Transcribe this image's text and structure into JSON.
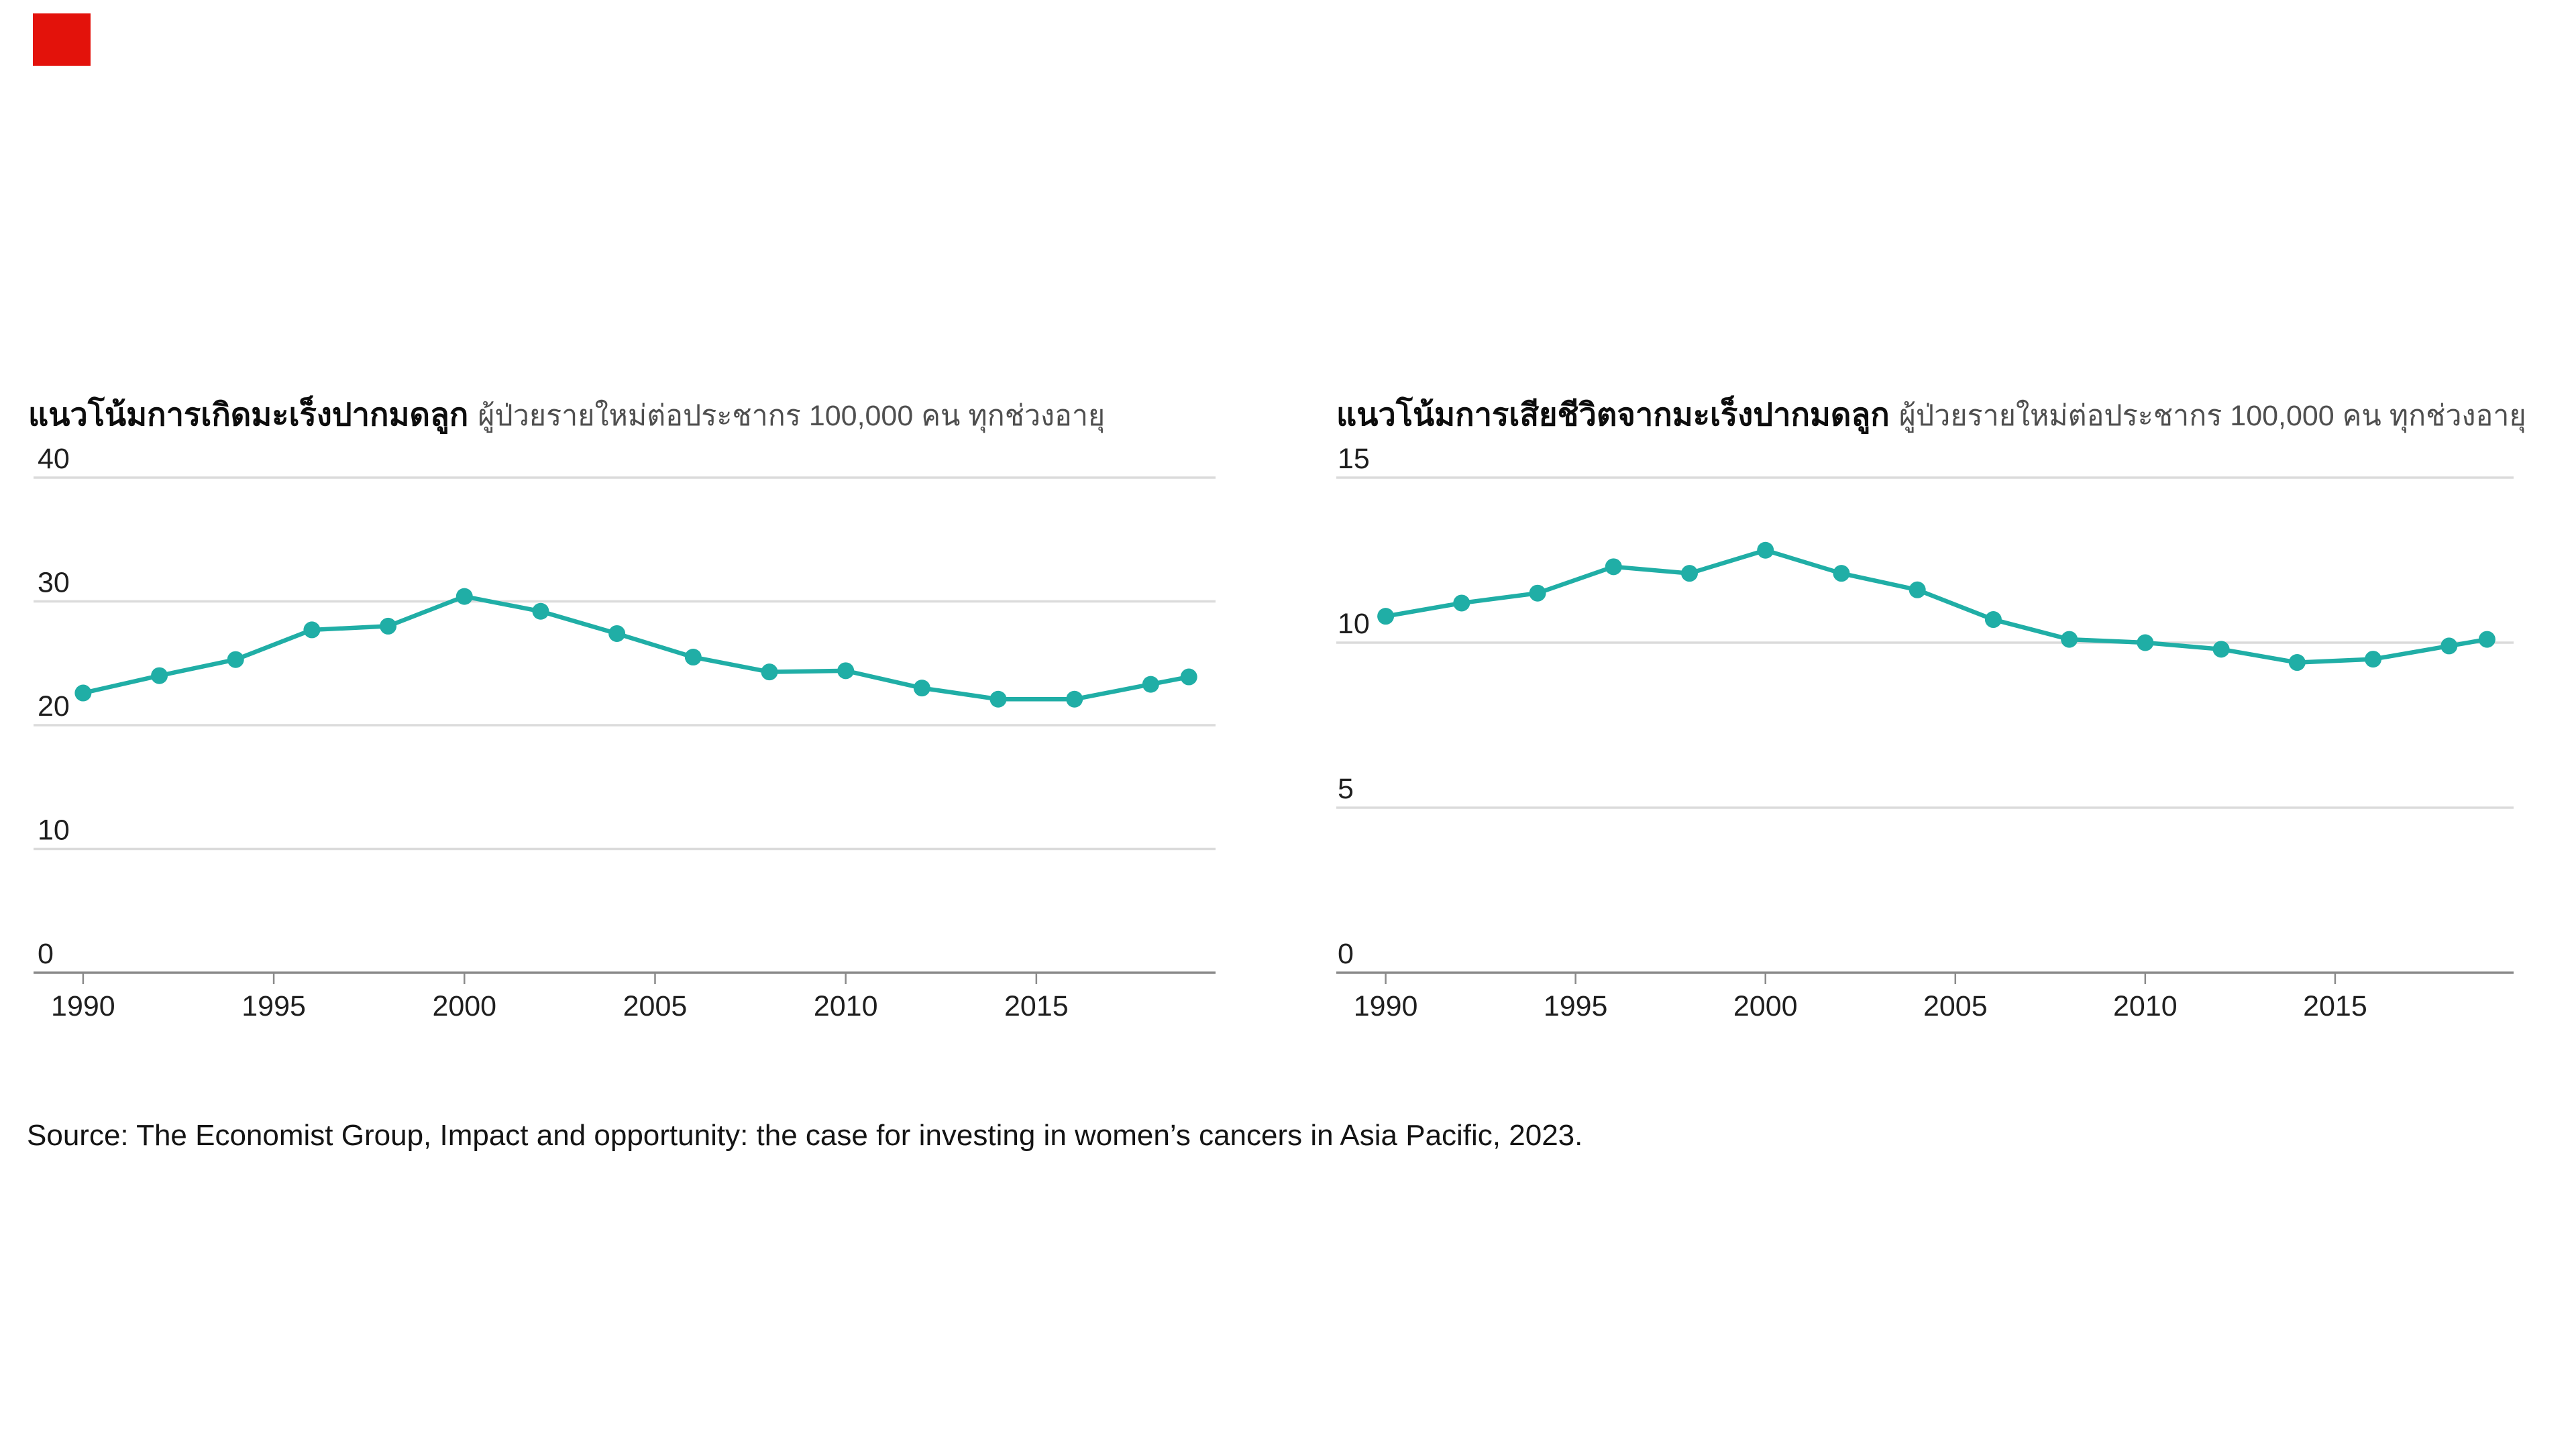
{
  "brand": {
    "mark_color": "#E3120B"
  },
  "source_line": "Source: The Economist Group, Impact and opportunity: the case for investing in women’s cancers in Asia Pacific, 2023.",
  "chart_data": [
    {
      "type": "line",
      "title": "แนวโน้มการเกิดมะเร็งปากมดลูก",
      "subtitle": "ผู้ป่วยรายใหม่ต่อประชากร 100,000 คน ทุกช่วงอายุ",
      "x": [
        1990,
        1992,
        1994,
        1996,
        1998,
        2000,
        2002,
        2004,
        2006,
        2008,
        2010,
        2012,
        2014,
        2016,
        2018,
        2019
      ],
      "values": [
        22.6,
        24.0,
        25.3,
        27.7,
        28.0,
        30.4,
        29.2,
        27.4,
        25.5,
        24.3,
        24.4,
        23.0,
        22.1,
        22.1,
        23.3,
        23.9
      ],
      "ylim": [
        0,
        40
      ],
      "yticks": [
        0,
        10,
        20,
        30,
        40
      ],
      "xticks": [
        1990,
        1995,
        2000,
        2005,
        2010,
        2015
      ],
      "xlim": [
        1988.7,
        2019.7
      ],
      "line_color": "#20AEA6",
      "grid": true,
      "legend": "none",
      "marker": "circle"
    },
    {
      "type": "line",
      "title": "แนวโน้มการเสียชีวิตจากมะเร็งปากมดลูก",
      "subtitle": "ผู้ป่วยรายใหม่ต่อประชากร 100,000 คน ทุกช่วงอายุ",
      "x": [
        1990,
        1992,
        1994,
        1996,
        1998,
        2000,
        2002,
        2004,
        2006,
        2008,
        2010,
        2012,
        2014,
        2016,
        2018,
        2019
      ],
      "values": [
        10.8,
        11.2,
        11.5,
        12.3,
        12.1,
        12.8,
        12.1,
        11.6,
        10.7,
        10.1,
        10.0,
        9.8,
        9.4,
        9.5,
        9.9,
        10.1
      ],
      "ylim": [
        0,
        15
      ],
      "yticks": [
        0,
        5,
        10,
        15
      ],
      "xticks": [
        1990,
        1995,
        2000,
        2005,
        2010,
        2015
      ],
      "xlim": [
        1988.7,
        2019.7
      ],
      "line_color": "#20AEA6",
      "grid": true,
      "legend": "none",
      "marker": "circle"
    }
  ],
  "style_colors": {
    "gridline": "#DBDBDB",
    "axis": "#8a8a8a",
    "tick": "#8a8a8a",
    "tick_label": "#1f1f1f"
  }
}
